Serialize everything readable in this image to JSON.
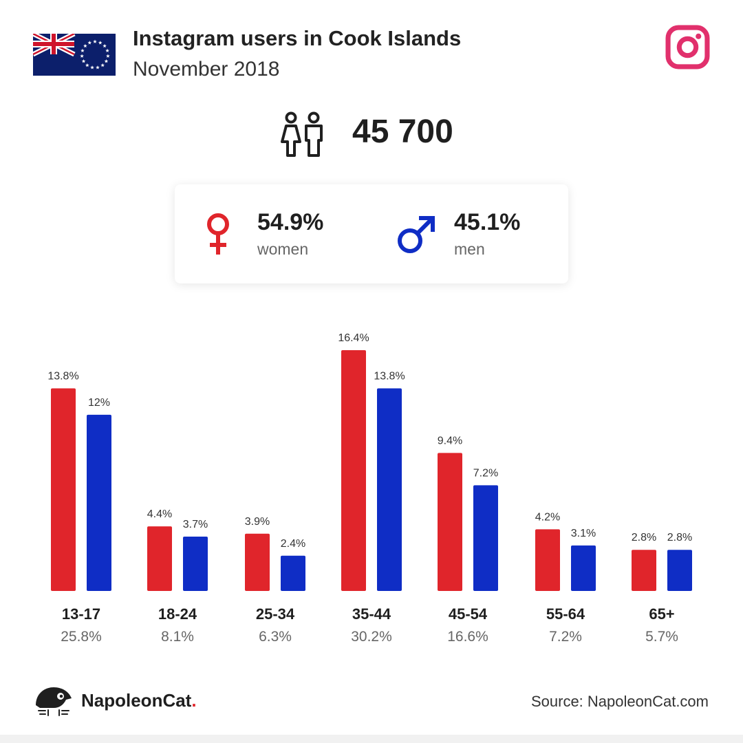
{
  "header": {
    "title": "Instagram users in Cook Islands",
    "subtitle": "November 2018"
  },
  "icons": {
    "flag": "cook-islands-flag",
    "platform": "instagram-icon",
    "users": "people-icon",
    "female": "female-symbol-icon",
    "male": "male-symbol-icon",
    "brand": "napoleoncat-logo"
  },
  "total_users": "45 700",
  "gender": {
    "women": {
      "pct": "54.9%",
      "label": "women"
    },
    "men": {
      "pct": "45.1%",
      "label": "men"
    }
  },
  "colors": {
    "women": "#e0252b",
    "men": "#0f2dc5",
    "instagram": "#e1306c"
  },
  "chart_data": {
    "type": "bar",
    "categories": [
      "13-17",
      "18-24",
      "25-34",
      "35-44",
      "45-54",
      "55-64",
      "65+"
    ],
    "category_totals": [
      "25.8%",
      "8.1%",
      "6.3%",
      "30.2%",
      "16.6%",
      "7.2%",
      "5.7%"
    ],
    "series": [
      {
        "name": "women",
        "values": [
          13.8,
          4.4,
          3.9,
          16.4,
          9.4,
          4.2,
          2.8
        ],
        "labels": [
          "13.8%",
          "4.4%",
          "3.9%",
          "16.4%",
          "9.4%",
          "4.2%",
          "2.8%"
        ]
      },
      {
        "name": "men",
        "values": [
          12,
          3.7,
          2.4,
          13.8,
          7.2,
          3.1,
          2.8
        ],
        "labels": [
          "12%",
          "3.7%",
          "2.4%",
          "13.8%",
          "7.2%",
          "3.1%",
          "2.8%"
        ]
      }
    ],
    "ylim": [
      0,
      16.4
    ],
    "grid": false,
    "legend": "none"
  },
  "footer": {
    "brand_name": "NapoleonCat",
    "brand_dot": ".",
    "source": "Source: NapoleonCat.com"
  }
}
